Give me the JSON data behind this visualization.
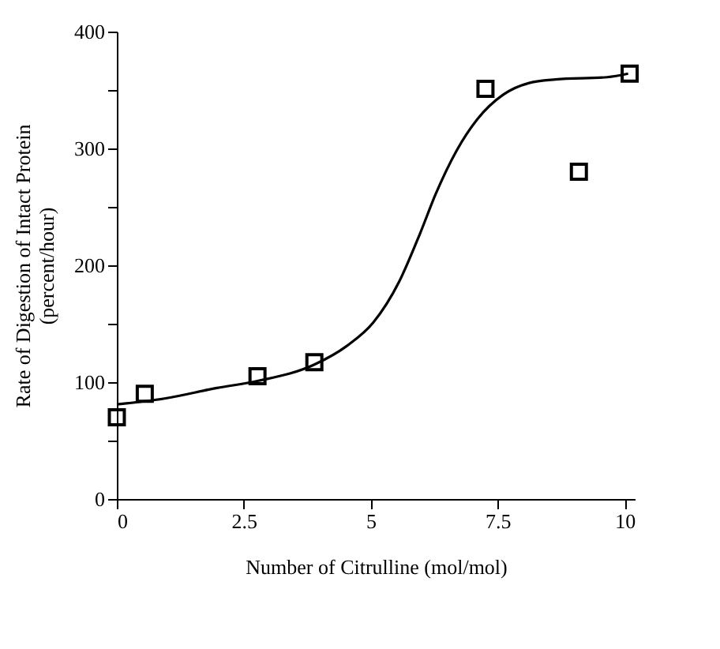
{
  "chart_data": {
    "type": "scatter",
    "xlabel": "Number of Citrulline (mol/mol)",
    "ylabel": "Rate of Digestion of Intact Protein\n(percent/hour)",
    "xlim": [
      0,
      10.2
    ],
    "xticks": [
      0,
      2.5,
      5,
      7.5,
      10
    ],
    "ylim": [
      0,
      400
    ],
    "yticks": [
      0,
      {
        "value": 50,
        "label": null
      },
      100,
      {
        "value": 150,
        "label": null
      },
      200,
      {
        "value": 250,
        "label": null
      },
      300,
      {
        "value": 350,
        "label": null
      },
      400
    ],
    "grid": false,
    "series": [
      {
        "type": "scatter",
        "color": "#000000",
        "marker": "square",
        "x": [
          0,
          0.55,
          2.77,
          3.89,
          7.26,
          9.1,
          10.1
        ],
        "values": [
          70,
          90,
          105,
          117,
          351,
          280,
          364
        ]
      },
      {
        "type": "line",
        "color": "#000000",
        "marker": "none",
        "line_style": "solid",
        "x": [
          0,
          0.94,
          1.97,
          2.77,
          3.89,
          4.53,
          5.05,
          5.56,
          5.97,
          6.28,
          6.69,
          7.1,
          7.61,
          8.12,
          8.64,
          9.66,
          10.07
        ],
        "values": [
          81,
          86,
          95,
          101,
          115,
          131,
          151,
          186,
          227,
          261,
          298,
          325,
          346,
          356,
          359,
          361,
          364
        ]
      }
    ]
  }
}
